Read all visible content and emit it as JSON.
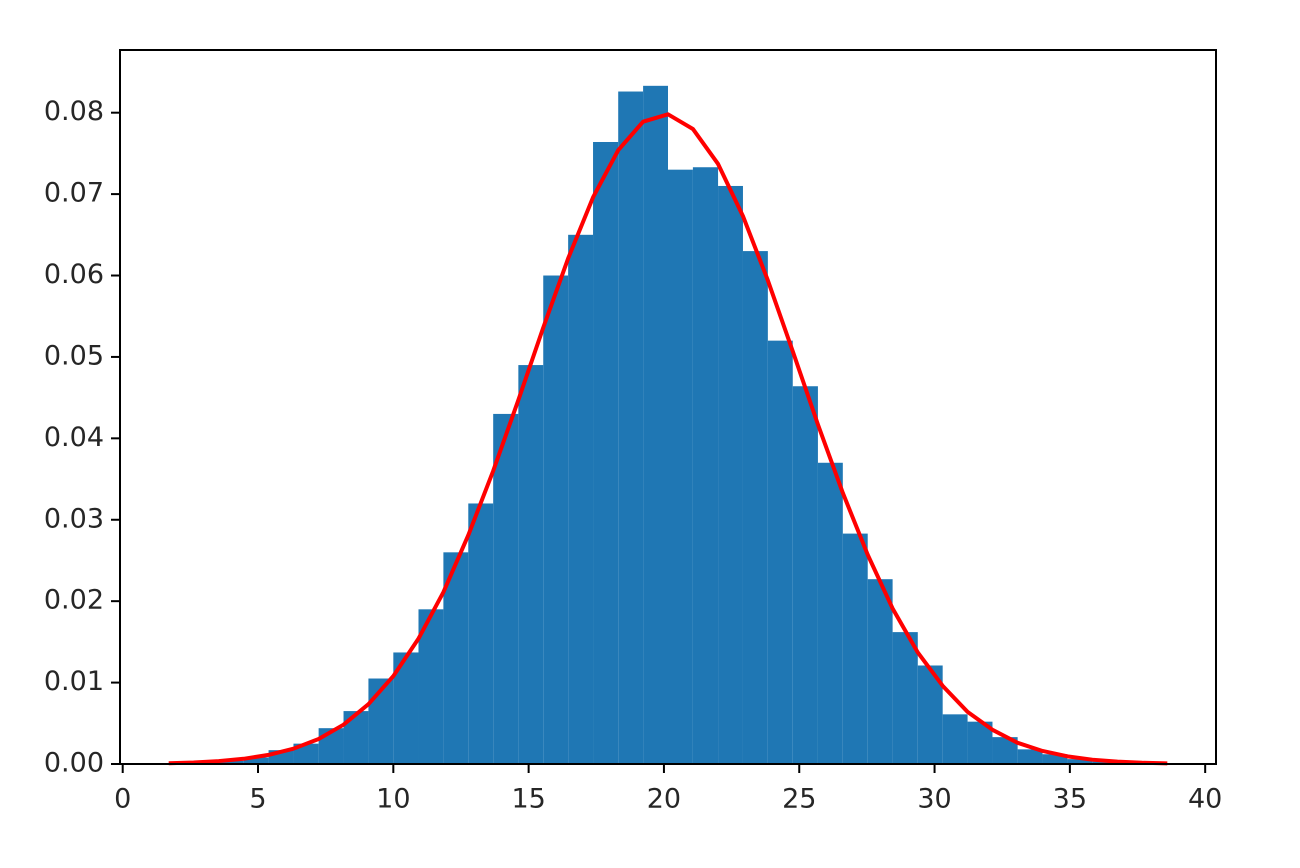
{
  "chart_data": {
    "type": "histogram",
    "color": "#1f77b4",
    "bins": [
      1.7,
      2.62,
      3.55,
      4.47,
      5.39,
      6.31,
      7.24,
      8.16,
      9.08,
      10.0,
      10.93,
      11.85,
      12.77,
      13.69,
      14.62,
      15.54,
      16.46,
      17.38,
      18.31,
      19.23,
      20.15,
      21.07,
      22.0,
      22.92,
      23.84,
      24.76,
      25.69,
      26.61,
      27.53,
      28.45,
      29.38,
      30.3,
      31.22,
      32.14,
      33.07,
      33.99,
      34.91,
      35.83,
      36.76,
      37.68,
      38.6
    ],
    "counts": [
      0.0001,
      0.0002,
      0.0004,
      0.0008,
      0.0017,
      0.0025,
      0.0044,
      0.0065,
      0.0105,
      0.0137,
      0.019,
      0.026,
      0.032,
      0.043,
      0.049,
      0.06,
      0.065,
      0.0764,
      0.0826,
      0.0833,
      0.073,
      0.0733,
      0.071,
      0.063,
      0.052,
      0.0464,
      0.037,
      0.0283,
      0.0227,
      0.0162,
      0.0121,
      0.0061,
      0.0052,
      0.0033,
      0.0018,
      0.0012,
      0.0006,
      0.0003,
      0.0002,
      0.0001
    ],
    "curve": {
      "color": "#ff0000",
      "values": [
        9.8e-05,
        0.00019,
        0.00036,
        0.00064,
        0.00112,
        0.00188,
        0.00307,
        0.00483,
        0.00735,
        0.0108,
        0.0154,
        0.0211,
        0.0281,
        0.036,
        0.0447,
        0.0536,
        0.0621,
        0.0696,
        0.0754,
        0.0789,
        0.0798,
        0.078,
        0.0737,
        0.0673,
        0.0594,
        0.0507,
        0.0417,
        0.0333,
        0.0257,
        0.0191,
        0.0137,
        0.0096,
        0.0064,
        0.0042,
        0.0026,
        0.0016,
        0.00094,
        0.00053,
        0.00029,
        0.00015,
        7.9e-05
      ]
    },
    "xlim": [
      -0.1,
      40.4
    ],
    "ylim": [
      0,
      0.0877
    ],
    "xticks": [
      0,
      5,
      10,
      15,
      20,
      25,
      30,
      35,
      40
    ],
    "yticks": [
      {
        "value": 0,
        "label": "0.00"
      },
      {
        "value": 0.01,
        "label": "0.01"
      },
      {
        "value": 0.02,
        "label": "0.02"
      },
      {
        "value": 0.03,
        "label": "0.03"
      },
      {
        "value": 0.04,
        "label": "0.04"
      },
      {
        "value": 0.05,
        "label": "0.05"
      },
      {
        "value": 0.06,
        "label": "0.06"
      },
      {
        "value": 0.07,
        "label": "0.07"
      },
      {
        "value": 0.08,
        "label": "0.08"
      }
    ]
  }
}
